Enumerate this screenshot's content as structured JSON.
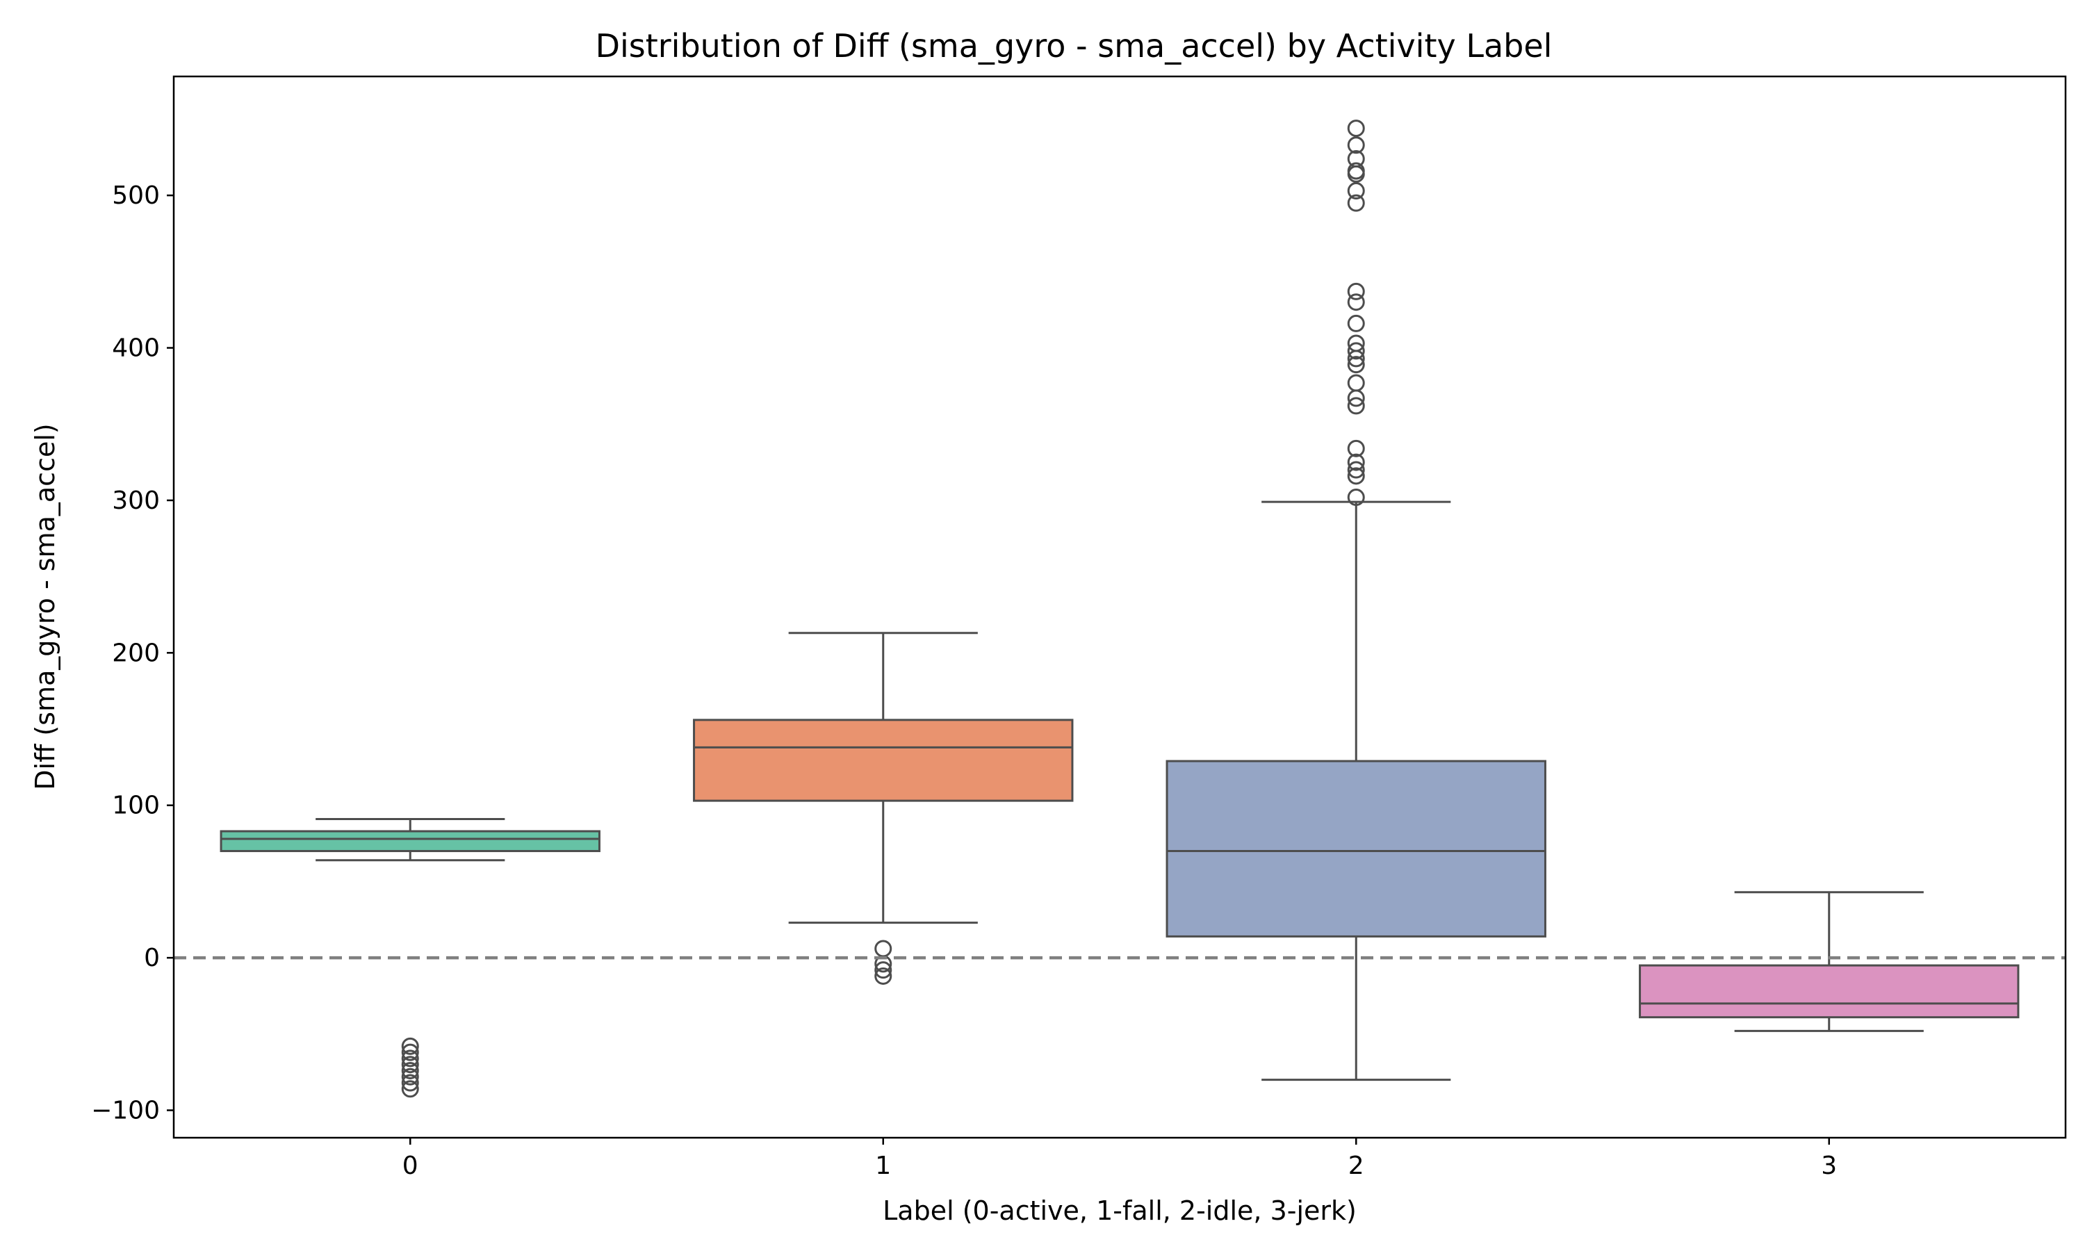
{
  "chart_data": {
    "type": "box",
    "title": "Distribution of Diff (sma_gyro - sma_accel) by Activity Label",
    "xlabel": "Label (0-active, 1-fall, 2-idle, 3-jerk)",
    "ylabel": "Diff (sma_gyro - sma_accel)",
    "categories": [
      "0",
      "1",
      "2",
      "3"
    ],
    "ylim": [
      -118,
      578
    ],
    "yticks": [
      -100,
      0,
      100,
      200,
      300,
      400,
      500
    ],
    "ytick_labels": [
      "−100",
      "0",
      "100",
      "200",
      "300",
      "400",
      "500"
    ],
    "grid": false,
    "reference_line": {
      "y": 0,
      "style": "dashed",
      "color": "#808080"
    },
    "boxes": [
      {
        "label": "0",
        "color": "#66c2a5",
        "whisker_low": 64,
        "q1": 70,
        "median": 78,
        "q3": 83,
        "whisker_high": 91,
        "outliers": [
          -58,
          -62,
          -66,
          -70,
          -74,
          -78,
          -82,
          -86
        ]
      },
      {
        "label": "1",
        "color": "#e9936f",
        "whisker_low": 23,
        "q1": 103,
        "median": 138,
        "q3": 156,
        "whisker_high": 213,
        "outliers": [
          6,
          -4,
          -8,
          -12
        ]
      },
      {
        "label": "2",
        "color": "#95a5c5",
        "whisker_low": -80,
        "q1": 14,
        "median": 70,
        "q3": 129,
        "whisker_high": 299,
        "outliers": [
          302,
          316,
          320,
          325,
          334,
          362,
          367,
          377,
          389,
          393,
          398,
          403,
          416,
          430,
          437,
          495,
          503,
          514,
          516,
          524,
          533,
          544
        ]
      },
      {
        "label": "3",
        "color": "#db93c0",
        "whisker_low": -48,
        "q1": -39,
        "median": -30,
        "q3": -5,
        "whisker_high": 43,
        "outliers": []
      }
    ]
  }
}
